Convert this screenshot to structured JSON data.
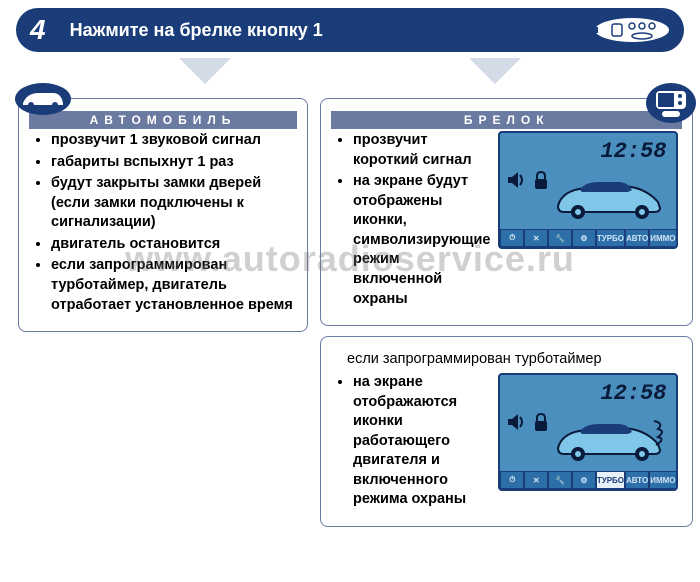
{
  "header": {
    "step": "4",
    "title": "Нажмите на брелке кнопку 1"
  },
  "watermark": "www.autoradioservice.ru",
  "left_panel": {
    "title": "АВТОМОБИЛЬ",
    "items": [
      "прозвучит 1 звуковой сигнал",
      "габариты вспыхнут 1 раз",
      "будут закрыты замки дверей (если замки подключены к сигнализации)",
      "двигатель остановится",
      "если запрограммирован турботаймер, двигатель отработает установленное время"
    ]
  },
  "right_panel_1": {
    "title": "БРЕЛОК",
    "items": [
      "прозвучит короткий сигнал",
      "на экране будут отображены иконки, символизирующие режим включенной охраны"
    ],
    "lcd": {
      "time": "12:58",
      "chips": [
        "⏱",
        "✕",
        "🔧",
        "⚙",
        "ТУРБО",
        "АВТО",
        "ИММО"
      ],
      "highlight_chip_index": -1,
      "show_exhaust": false
    }
  },
  "right_panel_2": {
    "note": "если  запрограммирован турботаймер",
    "items": [
      "на экране отображаются иконки работающего двигателя и включенного режима охраны"
    ],
    "lcd": {
      "time": "12:58",
      "chips": [
        "⏱",
        "✕",
        "🔧",
        "⚙",
        "ТУРБО",
        "АВТО",
        "ИММО"
      ],
      "highlight_chip_index": 4,
      "show_exhaust": true
    }
  },
  "colors": {
    "brand": "#1a3d7a",
    "panel_border": "#6a7aa0",
    "arrow": "#d3dbe6",
    "lcd_bg": "#4b8fbf"
  }
}
